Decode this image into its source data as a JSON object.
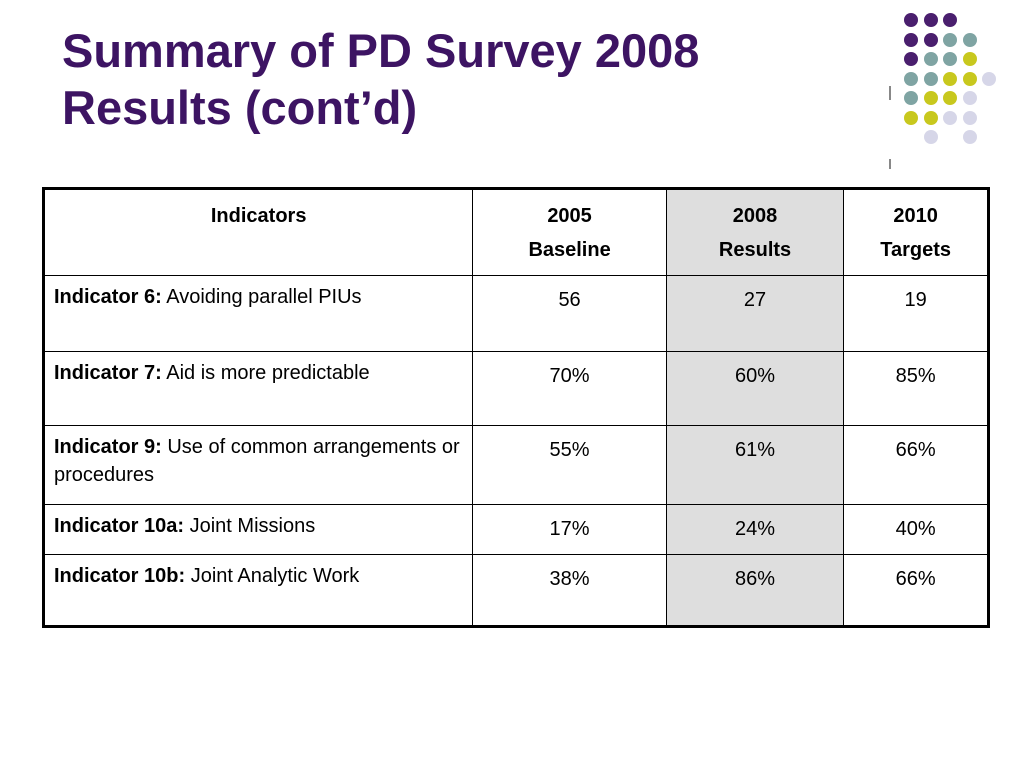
{
  "slide": {
    "title_line1": "Summary of PD Survey 2008",
    "title_line2": "Results (cont’d)"
  },
  "decoration": {
    "name": "dot-grid-decoration",
    "colors": {
      "purple": "#4a1f6e",
      "teal": "#7fa4a3",
      "olive": "#c8c81e",
      "lavender": "#d6d6e8"
    }
  },
  "table": {
    "headers": [
      {
        "line1": "Indicators",
        "line2": ""
      },
      {
        "line1": "2005",
        "line2": "Baseline"
      },
      {
        "line1": "2008",
        "line2": "Results"
      },
      {
        "line1": "2010",
        "line2": "Targets"
      }
    ],
    "rows": [
      {
        "label_bold": "Indicator 6:",
        "label_text": " Avoiding parallel PIUs",
        "baseline_2005": "56",
        "results_2008": "27",
        "targets_2010": "19"
      },
      {
        "label_bold": "Indicator 7:",
        "label_text": " Aid is more predictable",
        "baseline_2005": "70%",
        "results_2008": "60%",
        "targets_2010": "85%"
      },
      {
        "label_bold": "Indicator 9:",
        "label_text": " Use of common arrangements or procedures",
        "baseline_2005": "55%",
        "results_2008": "61%",
        "targets_2010": "66%"
      },
      {
        "label_bold": "Indicator 10a:",
        "label_text": " Joint Missions",
        "baseline_2005": "17%",
        "results_2008": "24%",
        "targets_2010": "40%"
      },
      {
        "label_bold": "Indicator 10b:",
        "label_text": " Joint Analytic Work",
        "baseline_2005": "38%",
        "results_2008": "86%",
        "targets_2010": "66%"
      }
    ],
    "highlight_color": "#dedede"
  }
}
